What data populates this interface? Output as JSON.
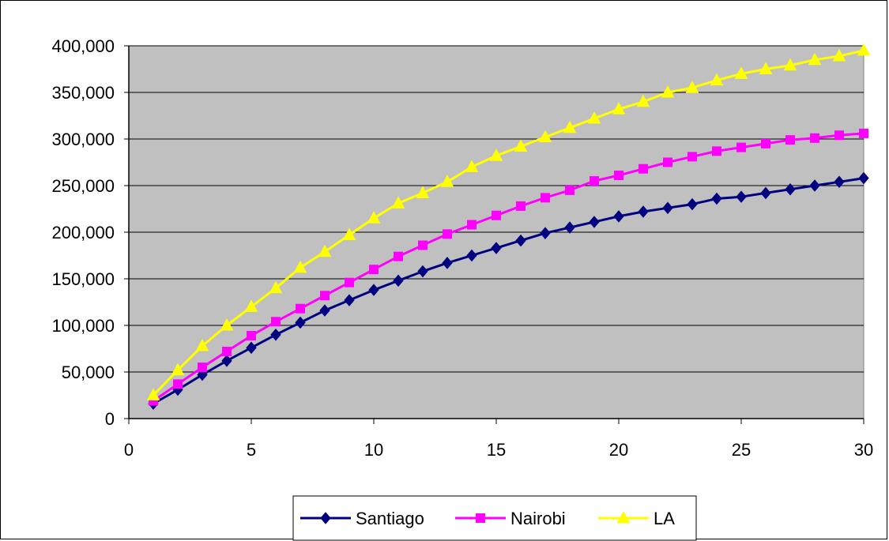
{
  "chart_data": {
    "type": "line",
    "x": [
      1,
      2,
      3,
      4,
      5,
      6,
      7,
      8,
      9,
      10,
      11,
      12,
      13,
      14,
      15,
      16,
      17,
      18,
      19,
      20,
      21,
      22,
      23,
      24,
      25,
      26,
      27,
      28,
      29,
      30
    ],
    "series": [
      {
        "name": "Santiago",
        "color": "#000080",
        "marker": "diamond",
        "values": [
          16000,
          31000,
          47000,
          62000,
          76000,
          90000,
          103000,
          116000,
          127000,
          138000,
          148000,
          158000,
          167000,
          175000,
          183000,
          191000,
          199000,
          205000,
          211000,
          217000,
          222000,
          226000,
          230000,
          236000,
          238000,
          242000,
          246000,
          250000,
          254000,
          258000
        ]
      },
      {
        "name": "Nairobi",
        "color": "#ff00ff",
        "marker": "square",
        "values": [
          19000,
          37000,
          55000,
          72000,
          89000,
          104000,
          118000,
          132000,
          146000,
          160000,
          174000,
          186000,
          198000,
          208000,
          218000,
          228000,
          237000,
          245000,
          255000,
          261000,
          268000,
          275000,
          281000,
          287000,
          291000,
          295000,
          299000,
          301000,
          304000,
          306000
        ]
      },
      {
        "name": "LA",
        "color": "#ffff00",
        "marker": "triangle",
        "values": [
          25000,
          52000,
          78000,
          100000,
          120000,
          140000,
          162000,
          179000,
          197000,
          215000,
          231000,
          242000,
          254000,
          270000,
          282000,
          292000,
          302000,
          312000,
          322000,
          332000,
          340000,
          350000,
          355000,
          363000,
          370000,
          375000,
          379000,
          385000,
          389000,
          395000
        ]
      }
    ],
    "x_ticks": [
      "0",
      "5",
      "10",
      "15",
      "20",
      "25",
      "30"
    ],
    "y_ticks": [
      "0",
      "50,000",
      "100,000",
      "150,000",
      "200,000",
      "250,000",
      "300,000",
      "350,000",
      "400,000"
    ],
    "xlim": [
      0,
      30
    ],
    "ylim": [
      0,
      400000
    ],
    "grid": "horizontal",
    "plot_background": "#c0c0c0",
    "legend_position": "bottom"
  }
}
